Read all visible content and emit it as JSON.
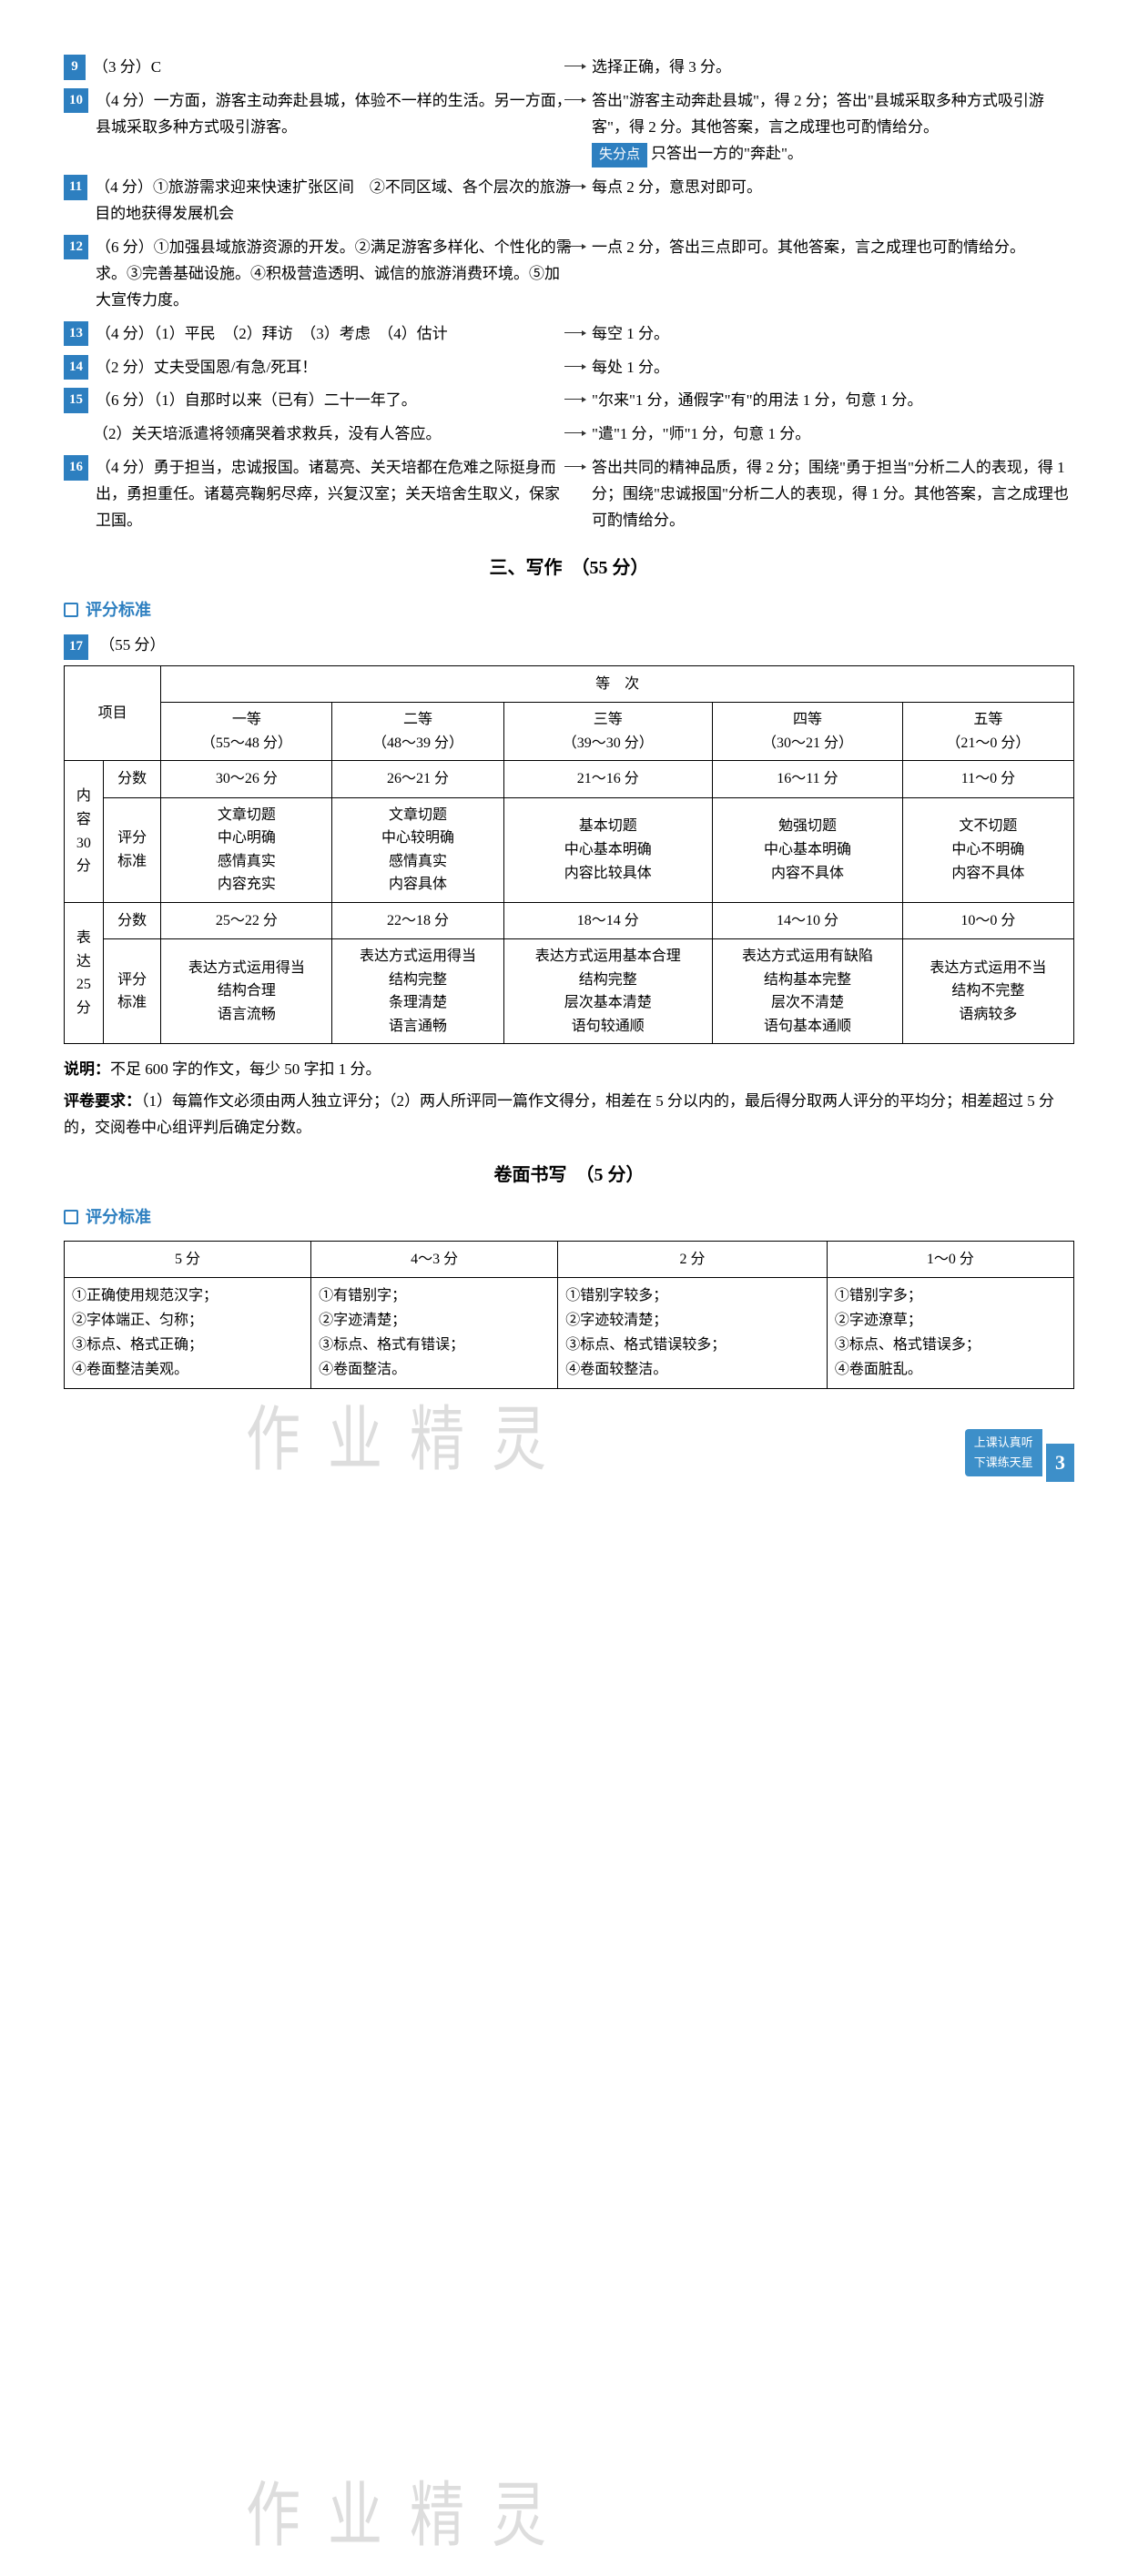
{
  "questions": [
    {
      "num": "9",
      "points": "（3 分）",
      "text": "C",
      "note": "选择正确，得 3 分。"
    },
    {
      "num": "10",
      "points": "（4 分）",
      "text": "一方面，游客主动奔赴县城，体验不一样的生活。另一方面，县城采取多种方式吸引游客。",
      "note": "答出\"游客主动奔赴县城\"，得 2 分；答出\"县城采取多种方式吸引游客\"，得 2 分。其他答案，言之成理也可酌情给分。",
      "losePoint": "只答出一方的\"奔赴\"。"
    },
    {
      "num": "11",
      "points": "（4 分）",
      "text": "①旅游需求迎来快速扩张区间　②不同区域、各个层次的旅游目的地获得发展机会",
      "note": "每点 2 分，意思对即可。"
    },
    {
      "num": "12",
      "points": "（6 分）",
      "text": "①加强县域旅游资源的开发。②满足游客多样化、个性化的需求。③完善基础设施。④积极营造透明、诚信的旅游消费环境。⑤加大宣传力度。",
      "note": "一点 2 分，答出三点即可。其他答案，言之成理也可酌情给分。"
    },
    {
      "num": "13",
      "points": "（4 分）",
      "text": "（1）平民　（2）拜访　（3）考虑　（4）估计",
      "note": "每空 1 分。"
    },
    {
      "num": "14",
      "points": "（2 分）",
      "text": "丈夫受国恩/有急/死耳！",
      "note": "每处 1 分。"
    },
    {
      "num": "15",
      "points": "（6 分）",
      "text": "（1）自那时以来（已有）二十一年了。",
      "note": "\"尔来\"1 分，通假字\"有\"的用法 1 分，句意 1 分。",
      "extraLeft": "（2）关天培派遣将领痛哭着求救兵，没有人答应。",
      "extraRight": "\"遣\"1 分，\"师\"1 分，句意 1 分。"
    },
    {
      "num": "16",
      "points": "（4 分）",
      "text": "勇于担当，忠诚报国。诸葛亮、关天培都在危难之际挺身而出，勇担重任。诸葛亮鞠躬尽瘁，兴复汉室；关天培舍生取义，保家卫国。",
      "note": "答出共同的精神品质，得 2 分；围绕\"勇于担当\"分析二人的表现，得 1 分；围绕\"忠诚报国\"分析二人的表现，得 1 分。其他答案，言之成理也可酌情给分。"
    }
  ],
  "section3": {
    "title": "三、写作　（55 分）",
    "scoringLabel": "评分标准",
    "q17": "（55 分）"
  },
  "table1": {
    "headers": {
      "project": "项目",
      "grade": "等　次",
      "g1": "一等\n（55～48 分）",
      "g2": "二等\n（48～39 分）",
      "g3": "三等\n（39～30 分）",
      "g4": "四等\n（30～21 分）",
      "g5": "五等\n（21～0 分）"
    },
    "content_row_label": "内\n容\n30\n分",
    "express_row_label": "表\n达\n25\n分",
    "score_label": "分数",
    "criteria_label": "评分\n标准",
    "content_scores": [
      "30～26 分",
      "26～21 分",
      "21～16 分",
      "16～11 分",
      "11～0 分"
    ],
    "content_criteria": [
      "文章切题\n中心明确\n感情真实\n内容充实",
      "文章切题\n中心较明确\n感情真实\n内容具体",
      "基本切题\n中心基本明确\n内容比较具体",
      "勉强切题\n中心基本明确\n内容不具体",
      "文不切题\n中心不明确\n内容不具体"
    ],
    "express_scores": [
      "25～22 分",
      "22～18 分",
      "18～14 分",
      "14～10 分",
      "10～0 分"
    ],
    "express_criteria": [
      "表达方式运用得当\n结构合理\n语言流畅",
      "表达方式运用得当\n结构完整\n条理清楚\n语言通畅",
      "表达方式运用基本合理\n结构完整\n层次基本清楚\n语句较通顺",
      "表达方式运用有缺陷\n结构基本完整\n层次不清楚\n语句基本通顺",
      "表达方式运用不当\n结构不完整\n语病较多"
    ]
  },
  "notes": {
    "note1_label": "说明：",
    "note1": "不足 600 字的作文，每少 50 字扣 1 分。",
    "note2_label": "评卷要求：",
    "note2": "（1）每篇作文必须由两人独立评分；（2）两人所评同一篇作文得分，相差在 5 分以内的，最后得分取两人评分的平均分；相差超过 5 分的，交阅卷中心组评判后确定分数。"
  },
  "handwriting": {
    "title": "卷面书写　（5 分）",
    "scoringLabel": "评分标准"
  },
  "table2": {
    "headers": [
      "5 分",
      "4～3 分",
      "2 分",
      "1～0 分"
    ],
    "rows": [
      [
        "①正确使用规范汉字；",
        "①有错别字；",
        "①错别字较多；",
        "①错别字多；"
      ],
      [
        "②字体端正、匀称；",
        "②字迹清楚；",
        "②字迹较清楚；",
        "②字迹潦草；"
      ],
      [
        "③标点、格式正确；",
        "③标点、格式有错误；",
        "③标点、格式错误较多；",
        "③标点、格式错误多；"
      ],
      [
        "④卷面整洁美观。",
        "④卷面整洁。",
        "④卷面较整洁。",
        "④卷面脏乱。"
      ]
    ]
  },
  "footer": {
    "line1": "上课认真听",
    "line2": "下课练天星",
    "pageNum": "3"
  },
  "watermark": "作业精灵"
}
